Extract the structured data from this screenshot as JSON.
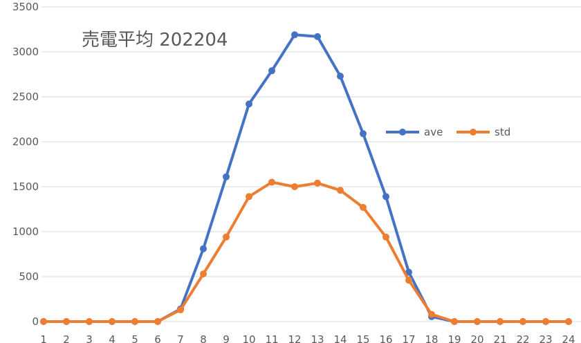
{
  "chart_data": {
    "type": "line",
    "title": "売電平均 202204",
    "categories": [
      "1",
      "2",
      "3",
      "4",
      "5",
      "6",
      "7",
      "8",
      "9",
      "10",
      "11",
      "12",
      "13",
      "14",
      "15",
      "16",
      "17",
      "18",
      "19",
      "20",
      "21",
      "22",
      "23",
      "24"
    ],
    "ylim": [
      0,
      3500
    ],
    "yticks": [
      0,
      500,
      1000,
      1500,
      2000,
      2500,
      3000,
      3500
    ],
    "grid": true,
    "legend_position": "right",
    "series": [
      {
        "name": "ave",
        "color": "#4472c4",
        "values": [
          0,
          0,
          0,
          0,
          0,
          0,
          140,
          810,
          1610,
          2420,
          2790,
          3190,
          3170,
          2730,
          2090,
          1390,
          550,
          55,
          0,
          0,
          0,
          0,
          0,
          0
        ]
      },
      {
        "name": "std",
        "color": "#ed7d31",
        "values": [
          0,
          0,
          0,
          0,
          0,
          0,
          130,
          530,
          940,
          1390,
          1550,
          1500,
          1540,
          1460,
          1270,
          940,
          460,
          80,
          0,
          0,
          0,
          0,
          0,
          0
        ]
      }
    ]
  }
}
